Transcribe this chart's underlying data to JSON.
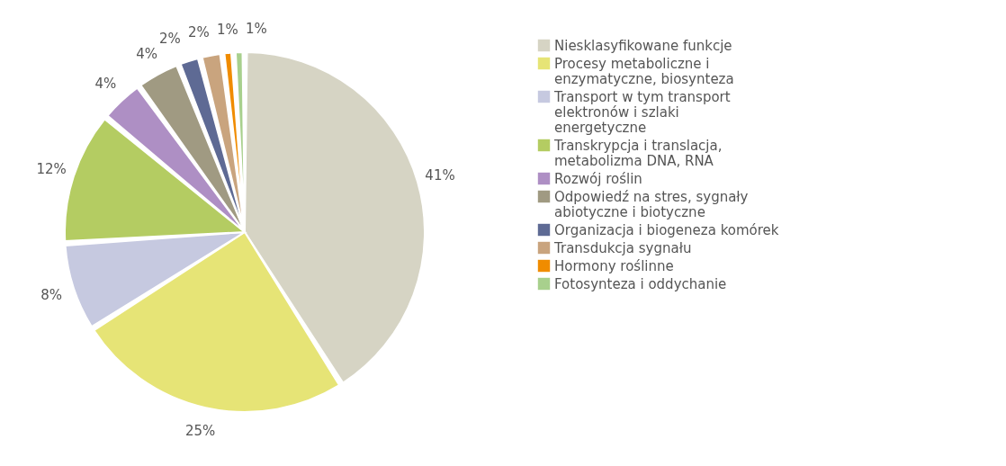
{
  "chart_data": {
    "type": "pie",
    "categories": [
      "Niesklasyfikowane funkcje",
      "Procesy metaboliczne i enzymatyczne, biosynteza",
      "Transport w tym transport elektronów i szlaki energetyczne",
      "Transkrypcja i translacja, metabolizma DNA, RNA",
      "Rozwój roślin",
      "Odpowiedź na stres, sygnały abiotyczne i biotyczne",
      "Organizacja i biogeneza komórek",
      "Transdukcja sygnału",
      "Hormony roślinne",
      "Fotosynteza i oddychanie"
    ],
    "values": [
      41,
      25,
      8,
      12,
      4,
      4,
      2,
      2,
      1,
      1
    ],
    "value_labels": [
      "41%",
      "25%",
      "8%",
      "12%",
      "4%",
      "4%",
      "2%",
      "2%",
      "1%",
      "1%"
    ],
    "colors": [
      "#d6d4c4",
      "#e6e476",
      "#c6c9e0",
      "#b4cc62",
      "#ae8fc4",
      "#a09a82",
      "#5e6a94",
      "#c9a47e",
      "#f08c00",
      "#a8d08d"
    ],
    "legend": "right"
  }
}
